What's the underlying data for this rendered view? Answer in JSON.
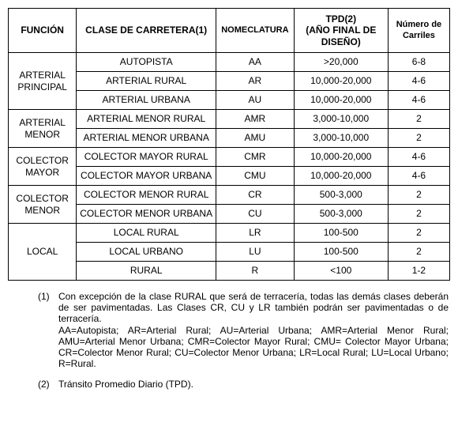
{
  "headers": {
    "funcion": "FUNCIÓN",
    "clase": "CLASE DE CARRETERA(1)",
    "nomeclatura": "NOMECLATURA",
    "tpd": "TPD(2)\n(AÑO FINAL DE DISEÑO)",
    "carriles": "Número de Carriles"
  },
  "groups": [
    {
      "funcion": "ARTERIAL PRINCIPAL",
      "rows": [
        {
          "clase": "AUTOPISTA",
          "nom": "AA",
          "tpd": ">20,000",
          "carr": "6-8"
        },
        {
          "clase": "ARTERIAL RURAL",
          "nom": "AR",
          "tpd": "10,000-20,000",
          "carr": "4-6"
        },
        {
          "clase": "ARTERIAL URBANA",
          "nom": "AU",
          "tpd": "10,000-20,000",
          "carr": "4-6"
        }
      ]
    },
    {
      "funcion": "ARTERIAL MENOR",
      "rows": [
        {
          "clase": "ARTERIAL MENOR RURAL",
          "nom": "AMR",
          "tpd": "3,000-10,000",
          "carr": "2"
        },
        {
          "clase": "ARTERIAL MENOR URBANA",
          "nom": "AMU",
          "tpd": "3,000-10,000",
          "carr": "2"
        }
      ]
    },
    {
      "funcion": "COLECTOR MAYOR",
      "rows": [
        {
          "clase": "COLECTOR MAYOR RURAL",
          "nom": "CMR",
          "tpd": "10,000-20,000",
          "carr": "4-6"
        },
        {
          "clase": "COLECTOR MAYOR URBANA",
          "nom": "CMU",
          "tpd": "10,000-20,000",
          "carr": "4-6"
        }
      ]
    },
    {
      "funcion": "COLECTOR MENOR",
      "rows": [
        {
          "clase": "COLECTOR MENOR RURAL",
          "nom": "CR",
          "tpd": "500-3,000",
          "carr": "2"
        },
        {
          "clase": "COLECTOR MENOR URBANA",
          "nom": "CU",
          "tpd": "500-3,000",
          "carr": "2"
        }
      ]
    },
    {
      "funcion": "LOCAL",
      "rows": [
        {
          "clase": "LOCAL RURAL",
          "nom": "LR",
          "tpd": "100-500",
          "carr": "2"
        },
        {
          "clase": "LOCAL URBANO",
          "nom": "LU",
          "tpd": "100-500",
          "carr": "2"
        },
        {
          "clase": "RURAL",
          "nom": "R",
          "tpd": "<100",
          "carr": "1-2"
        }
      ]
    }
  ],
  "notes": {
    "n1_num": "(1)",
    "n1_main": "Con excepción de la clase RURAL que será de terracería, todas las demás clases deberán de ser pavimentadas. Las Clases CR,  CU y LR también podrán ser pavimentadas o de terracería.",
    "n1_abbrev": "AA=Autopista; AR=Arterial Rural; AU=Arterial Urbana; AMR=Arterial Menor Rural; AMU=Arterial Menor Urbana; CMR=Colector Mayor Rural; CMU= Colector Mayor Urbana; CR=Colector Menor Rural; CU=Colector Menor Urbana; LR=Local Rural; LU=Local Urbano; R=Rural.",
    "n2_num": "(2)",
    "n2_main": "Tránsito Promedio Diario (TPD)."
  }
}
